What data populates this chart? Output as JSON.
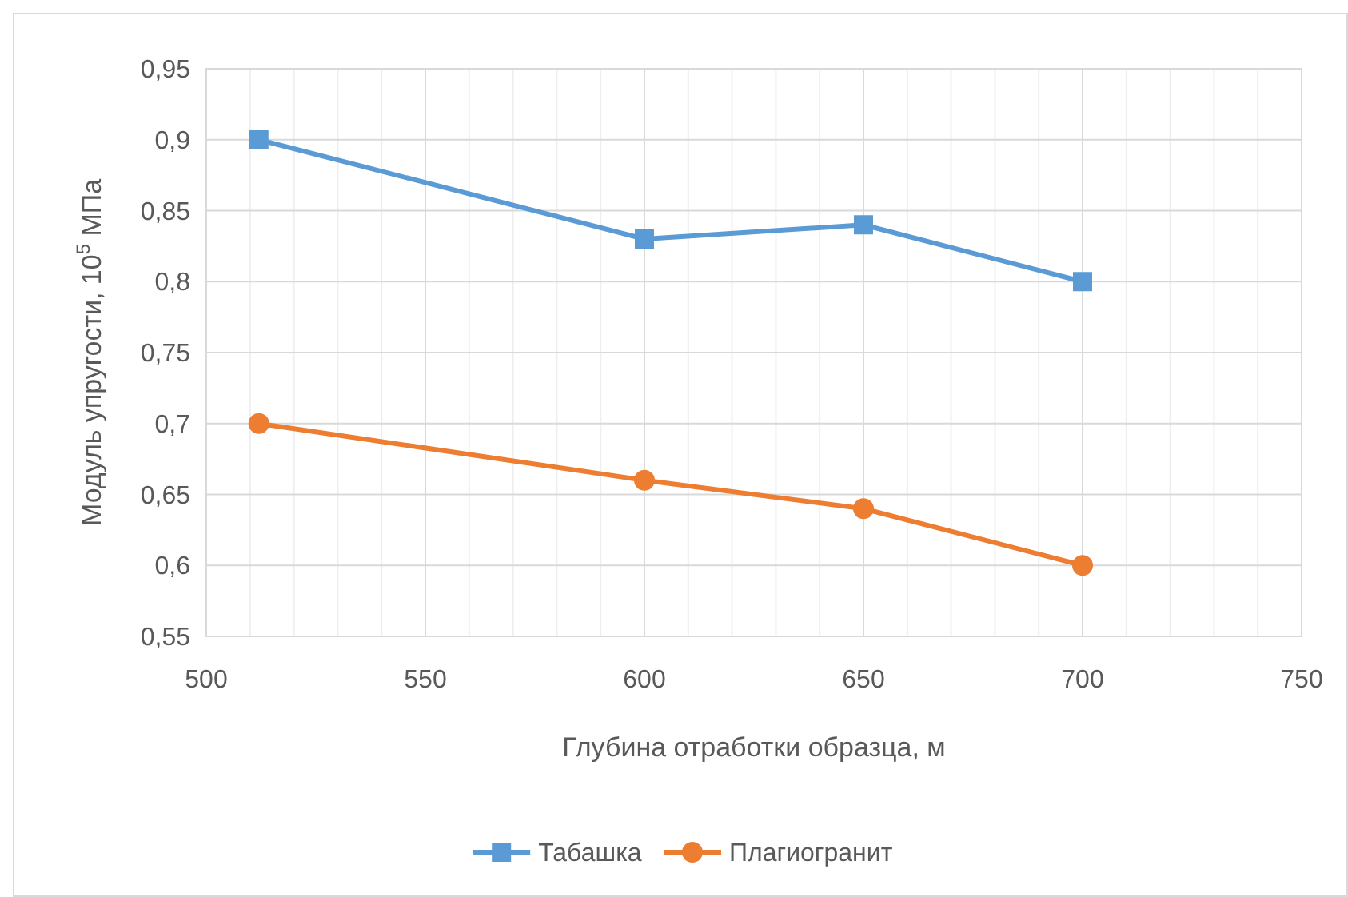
{
  "chart_data": {
    "type": "line",
    "xlabel": "Глубина отработки образца, м",
    "ylabel": "Модуль упругости, 10$^{5}$ МПа",
    "x": [
      512,
      600,
      650,
      700
    ],
    "series": [
      {
        "name": "Табашка",
        "color": "#5b9bd5",
        "marker": "square",
        "values": [
          0.9,
          0.83,
          0.84,
          0.8
        ]
      },
      {
        "name": "Плагиогранит",
        "color": "#ed7d31",
        "marker": "circle",
        "values": [
          0.7,
          0.66,
          0.64,
          0.6
        ]
      }
    ],
    "xlim": [
      500,
      750
    ],
    "xticks": [
      500,
      550,
      600,
      650,
      700,
      750
    ],
    "ylim": [
      0.55,
      0.95
    ],
    "yticks": [
      {
        "value": 0.55,
        "label": "0,55"
      },
      {
        "value": 0.6,
        "label": "0,6"
      },
      {
        "value": 0.65,
        "label": "0,65"
      },
      {
        "value": 0.7,
        "label": "0,7"
      },
      {
        "value": 0.75,
        "label": "0,75"
      },
      {
        "value": 0.8,
        "label": "0,8"
      },
      {
        "value": 0.85,
        "label": "0,85"
      },
      {
        "value": 0.9,
        "label": "0,9"
      },
      {
        "value": 0.95,
        "label": "0,95"
      }
    ],
    "grid": true,
    "legend": "bottom",
    "line_style": "solid"
  }
}
